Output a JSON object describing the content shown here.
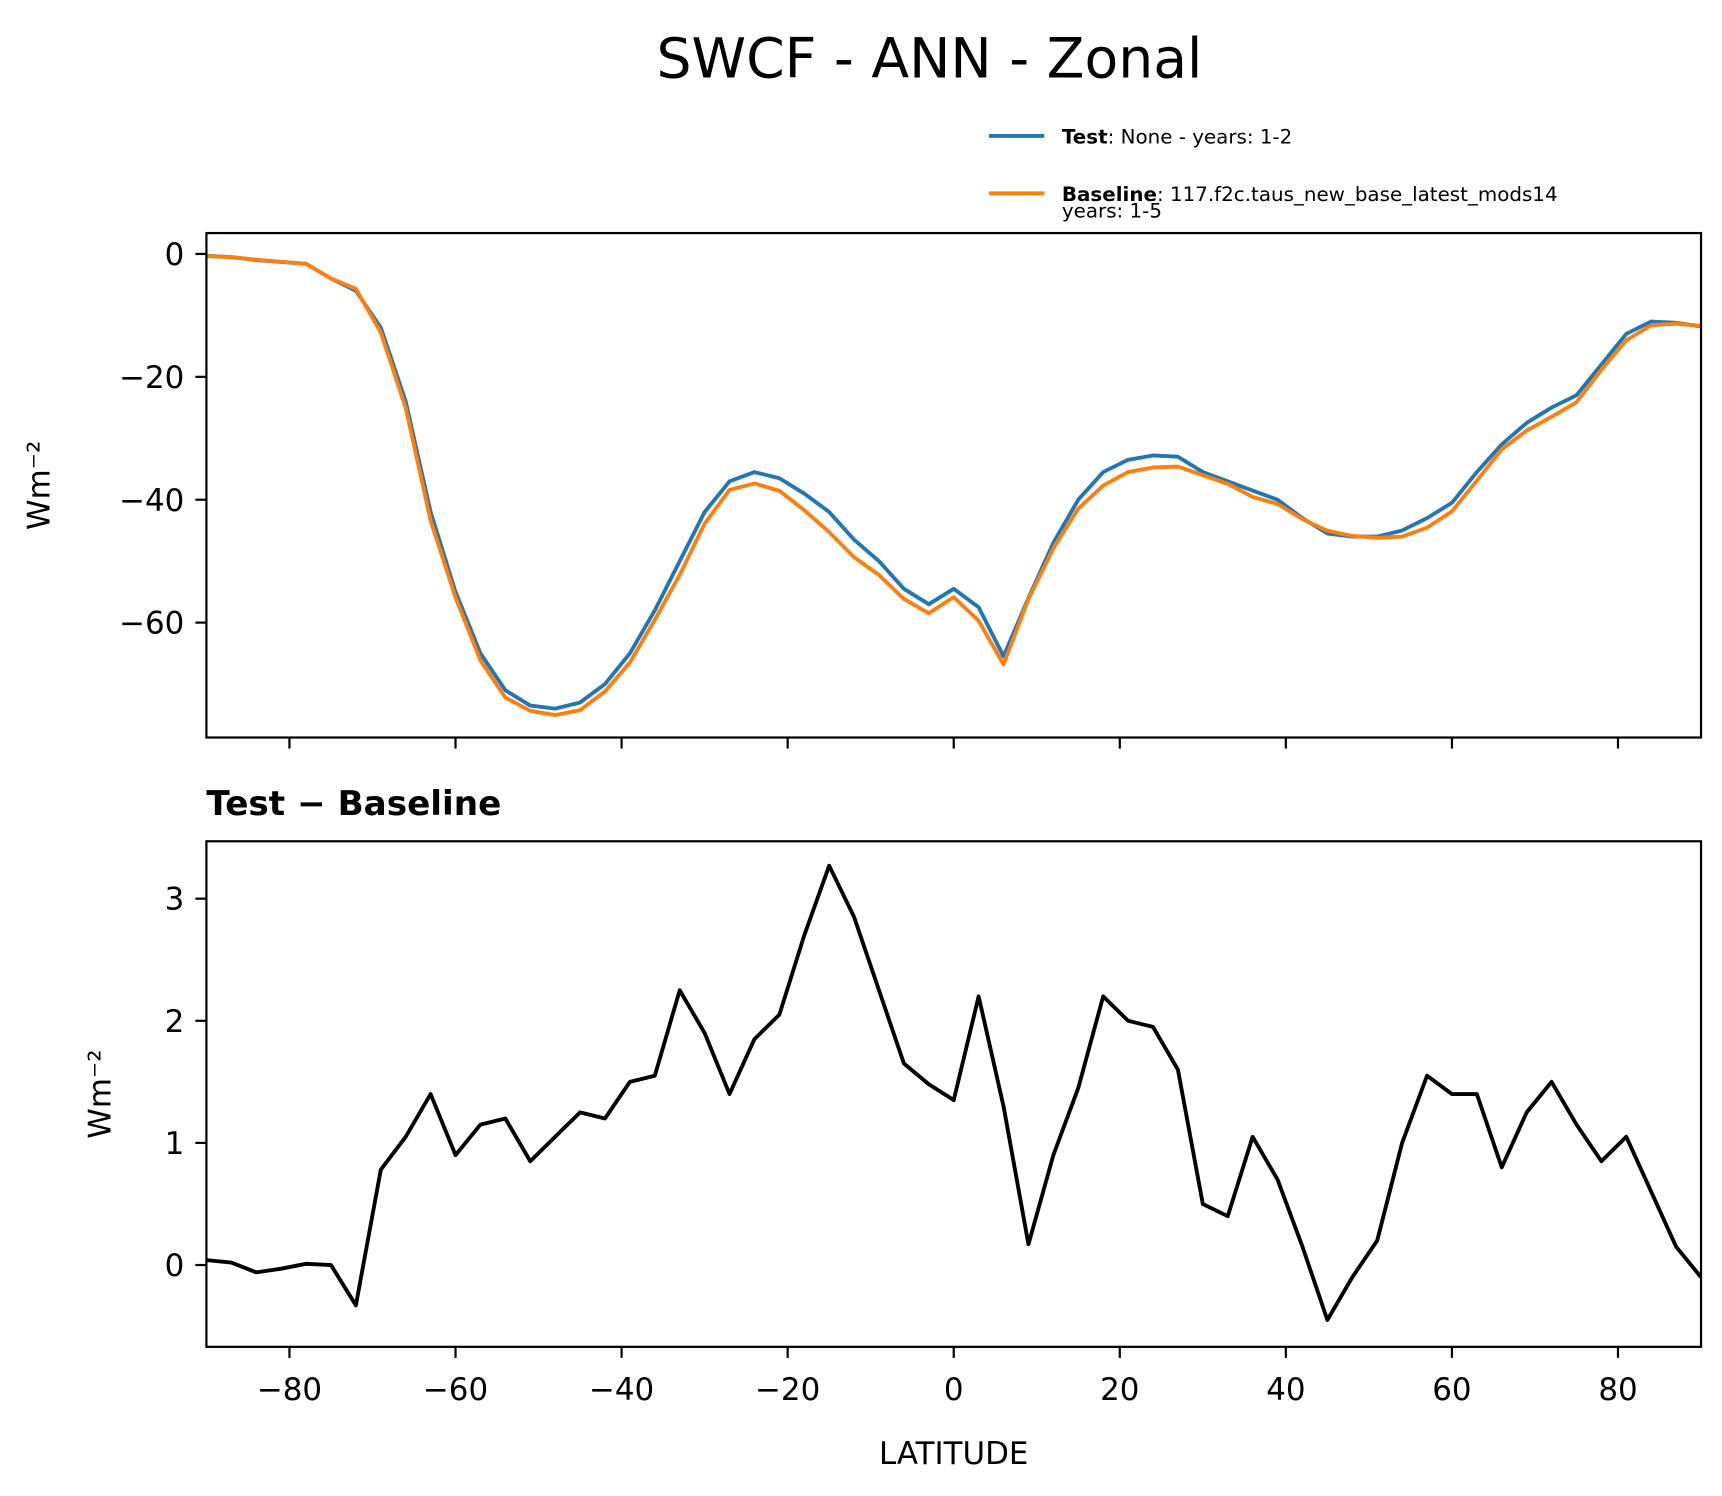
{
  "title": "SWCF - ANN - Zonal",
  "chart_data": [
    {
      "type": "line",
      "ylabel": "Wm⁻²",
      "x": [
        -90,
        -87,
        -84,
        -81,
        -78,
        -75,
        -72,
        -69,
        -66,
        -63,
        -60,
        -57,
        -54,
        -51,
        -48,
        -45,
        -42,
        -39,
        -36,
        -33,
        -30,
        -27,
        -24,
        -21,
        -18,
        -15,
        -12,
        -9,
        -6,
        -3,
        0,
        3,
        6,
        9,
        12,
        15,
        18,
        21,
        24,
        27,
        30,
        33,
        36,
        39,
        42,
        45,
        48,
        51,
        54,
        57,
        60,
        63,
        66,
        69,
        72,
        75,
        78,
        81,
        84,
        87,
        90
      ],
      "series": [
        {
          "name": "Test",
          "detail": ": None - years: 1-2",
          "color": "#1f77b4",
          "values": [
            -0.3,
            -0.5,
            -1.0,
            -1.3,
            -1.6,
            -4,
            -6,
            -12,
            -24,
            -42,
            -55,
            -65,
            -71,
            -73.5,
            -74,
            -73,
            -70,
            -65,
            -58,
            -50,
            -42,
            -37,
            -35.5,
            -36.5,
            -39,
            -42,
            -46.5,
            -50,
            -54.5,
            -57,
            -54.5,
            -57.5,
            -65.5,
            -56,
            -47,
            -40,
            -35.5,
            -33.5,
            -32.8,
            -33,
            -35.5,
            -37,
            -38.5,
            -40,
            -43,
            -45.5,
            -46,
            -46,
            -45,
            -43,
            -40.5,
            -35.5,
            -31,
            -27.5,
            -25,
            -23,
            -18,
            -13,
            -11,
            -11.2,
            -11.8
          ]
        },
        {
          "name": "Baseline",
          "detail": ": 117.f2c.taus_new_base_latest_mods14",
          "detail2": "years: 1-5",
          "color": "#ff7f0e",
          "values": [
            -0.34,
            -0.52,
            -0.94,
            -1.27,
            -1.61,
            -4.0,
            -5.67,
            -12.78,
            -25.05,
            -43.4,
            -55.9,
            -66.15,
            -72.2,
            -74.35,
            -75.05,
            -74.25,
            -71.2,
            -66.5,
            -59.55,
            -52.25,
            -43.9,
            -38.4,
            -37.35,
            -38.55,
            -41.7,
            -45.27,
            -49.35,
            -52.25,
            -56.15,
            -58.48,
            -55.85,
            -59.7,
            -66.8,
            -56.17,
            -47.9,
            -41.45,
            -37.7,
            -35.5,
            -34.75,
            -34.6,
            -36.0,
            -37.4,
            -39.55,
            -40.7,
            -43.15,
            -45.05,
            -45.9,
            -46.2,
            -46.0,
            -44.55,
            -41.9,
            -36.9,
            -31.8,
            -28.75,
            -26.5,
            -24.15,
            -18.85,
            -14.05,
            -11.6,
            -11.35,
            -11.7
          ]
        }
      ],
      "xlim": [
        -90,
        90
      ],
      "xticks": [
        -80,
        -60,
        -40,
        -20,
        0,
        20,
        40,
        60,
        80
      ],
      "ylim": [
        -78.7,
        3.4
      ],
      "yticks": [
        {
          "value": -60,
          "label": "−60"
        },
        {
          "value": -40,
          "label": "−40"
        },
        {
          "value": -20,
          "label": "−20"
        },
        0
      ],
      "legend": "upper right"
    },
    {
      "type": "line",
      "title": "Test − Baseline",
      "ylabel": "Wm⁻²",
      "xlabel": "LATITUDE",
      "x": [
        -90,
        -87,
        -84,
        -81,
        -78,
        -75,
        -72,
        -69,
        -66,
        -63,
        -60,
        -57,
        -54,
        -51,
        -48,
        -45,
        -42,
        -39,
        -36,
        -33,
        -30,
        -27,
        -24,
        -21,
        -18,
        -15,
        -12,
        -9,
        -6,
        -3,
        0,
        3,
        6,
        9,
        12,
        15,
        18,
        21,
        24,
        27,
        30,
        33,
        36,
        39,
        42,
        45,
        48,
        51,
        54,
        57,
        60,
        63,
        66,
        69,
        72,
        75,
        78,
        81,
        84,
        87,
        90
      ],
      "series": [
        {
          "color": "#000000",
          "values": [
            0.04,
            0.02,
            -0.06,
            -0.03,
            0.01,
            0.0,
            -0.33,
            0.78,
            1.05,
            1.4,
            0.9,
            1.15,
            1.2,
            0.85,
            1.05,
            1.25,
            1.2,
            1.5,
            1.55,
            2.25,
            1.9,
            1.4,
            1.85,
            2.05,
            2.7,
            3.27,
            2.85,
            2.25,
            1.65,
            1.48,
            1.35,
            2.2,
            1.3,
            0.17,
            0.9,
            1.45,
            2.2,
            2.0,
            1.95,
            1.6,
            0.5,
            0.4,
            1.05,
            0.7,
            0.15,
            -0.45,
            -0.1,
            0.2,
            1.0,
            1.55,
            1.4,
            1.4,
            0.8,
            1.25,
            1.5,
            1.15,
            0.85,
            1.05,
            0.6,
            0.15,
            -0.1
          ]
        }
      ],
      "xlim": [
        -90,
        90
      ],
      "xticks": [
        {
          "value": -80,
          "label": "−80"
        },
        {
          "value": -60,
          "label": "−60"
        },
        {
          "value": -40,
          "label": "−40"
        },
        {
          "value": -20,
          "label": "−20"
        },
        0,
        20,
        40,
        60,
        80
      ],
      "ylim": [
        -0.67,
        3.47
      ],
      "yticks": [
        0,
        1,
        2,
        3
      ]
    }
  ]
}
